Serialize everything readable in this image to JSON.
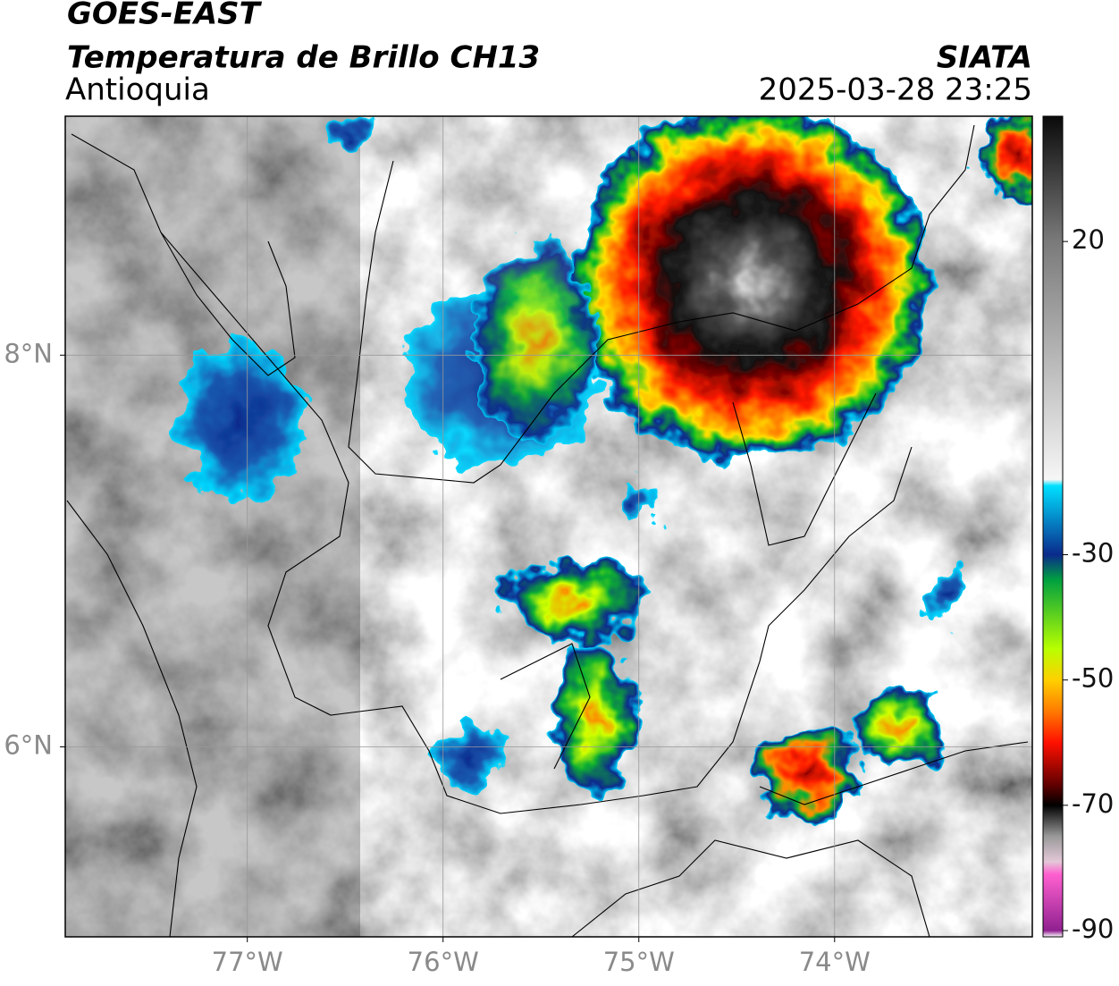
{
  "header": {
    "title": "GOES-EAST",
    "subtitle": "Temperatura de Brillo CH13",
    "region": "Antioquia",
    "source": "SIATA",
    "datetime": "2025-03-28 23:25"
  },
  "map": {
    "xlim": [
      -77.93,
      -72.99
    ],
    "ylim": [
      5.03,
      9.22
    ],
    "xticks": [
      {
        "value": -77,
        "label": "77°W"
      },
      {
        "value": -76,
        "label": "76°W"
      },
      {
        "value": -75,
        "label": "75°W"
      },
      {
        "value": -74,
        "label": "74°W"
      }
    ],
    "yticks": [
      {
        "value": 8,
        "label": "8°N"
      },
      {
        "value": 6,
        "label": "6°N"
      }
    ],
    "grid": true
  },
  "colorbar": {
    "lim": [
      -91,
      40
    ],
    "ticks": [
      20,
      -30,
      -50,
      -70,
      -90
    ],
    "stops": [
      {
        "value": 40,
        "color": "#0a0a0a"
      },
      {
        "value": 20,
        "color": "#7a7a7a"
      },
      {
        "value": -18,
        "color": "#f6f6f6"
      },
      {
        "value": -19,
        "color": "#00e0ff"
      },
      {
        "value": -30,
        "color": "#0a2a8c"
      },
      {
        "value": -34,
        "color": "#00a040"
      },
      {
        "value": -45,
        "color": "#b8ff00"
      },
      {
        "value": -50,
        "color": "#ffd000"
      },
      {
        "value": -55,
        "color": "#ff7a00"
      },
      {
        "value": -60,
        "color": "#ff1000"
      },
      {
        "value": -67,
        "color": "#5a0000"
      },
      {
        "value": -70,
        "color": "#000000"
      },
      {
        "value": -75,
        "color": "#9a9a9a"
      },
      {
        "value": -79,
        "color": "#e4c8d8"
      },
      {
        "value": -81,
        "color": "#ff60d0"
      },
      {
        "value": -90,
        "color": "#902090"
      },
      {
        "value": -91,
        "color": "#ffffff"
      }
    ]
  }
}
